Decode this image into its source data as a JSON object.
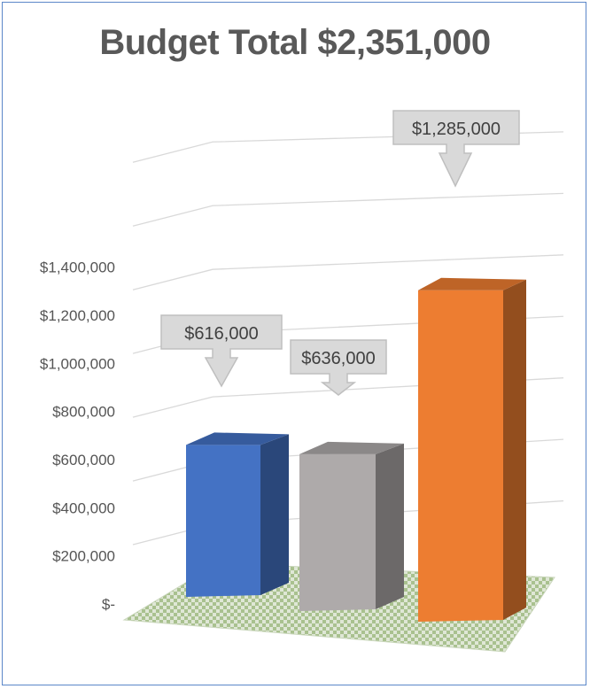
{
  "chart_data": {
    "type": "bar",
    "title": "Budget Total $2,351,000",
    "categories": [
      "",
      "",
      ""
    ],
    "values": [
      616000,
      636000,
      1285000
    ],
    "data_labels": [
      "$616,000",
      "$636,000",
      "$1,285,000"
    ],
    "ylim": [
      0,
      1400000
    ],
    "y_ticks": [
      0,
      200000,
      400000,
      600000,
      800000,
      1000000,
      1200000,
      1400000
    ],
    "y_tick_labels": [
      "$-",
      "$200,000",
      "$400,000",
      "$600,000",
      "$800,000",
      "$1,000,000",
      "$1,200,000",
      "$1,400,000"
    ],
    "colors": [
      "#4472c4",
      "#aeaaaa",
      "#ed7d31"
    ],
    "style": "3d-column",
    "grid": true,
    "legend": "none"
  }
}
